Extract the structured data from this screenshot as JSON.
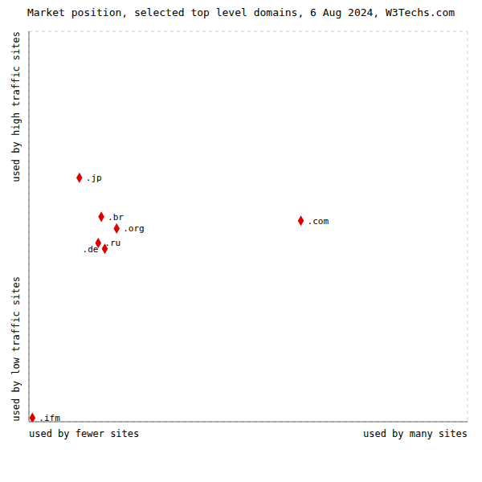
{
  "chart_data": {
    "type": "scatter",
    "title": "Market position, selected top level domains, 6 Aug 2024, W3Techs.com",
    "xlabel": [
      "used by fewer sites",
      "used by many sites"
    ],
    "ylabel": [
      "used by low traffic sites",
      "used by high traffic sites"
    ],
    "x": [
      0.115,
      0.165,
      0.2,
      0.158,
      0.173,
      0.62,
      0.008
    ],
    "values": [
      0.625,
      0.525,
      0.495,
      0.458,
      0.443,
      0.515,
      0.01
    ],
    "labels": [
      ".jp",
      ".br",
      ".org",
      ".ru",
      ".de",
      ".com",
      ".ifm"
    ],
    "color": "#dd0000",
    "marker": "diamond",
    "xlim": [
      0,
      1
    ],
    "ylim": [
      0,
      1
    ],
    "xticks": [
      0,
      0.2,
      0.4,
      0.6,
      0.8,
      1
    ],
    "yticks": [
      0,
      0.2,
      0.4,
      0.6,
      0.8,
      1
    ],
    "grid": true,
    "tick_labels": false
  }
}
